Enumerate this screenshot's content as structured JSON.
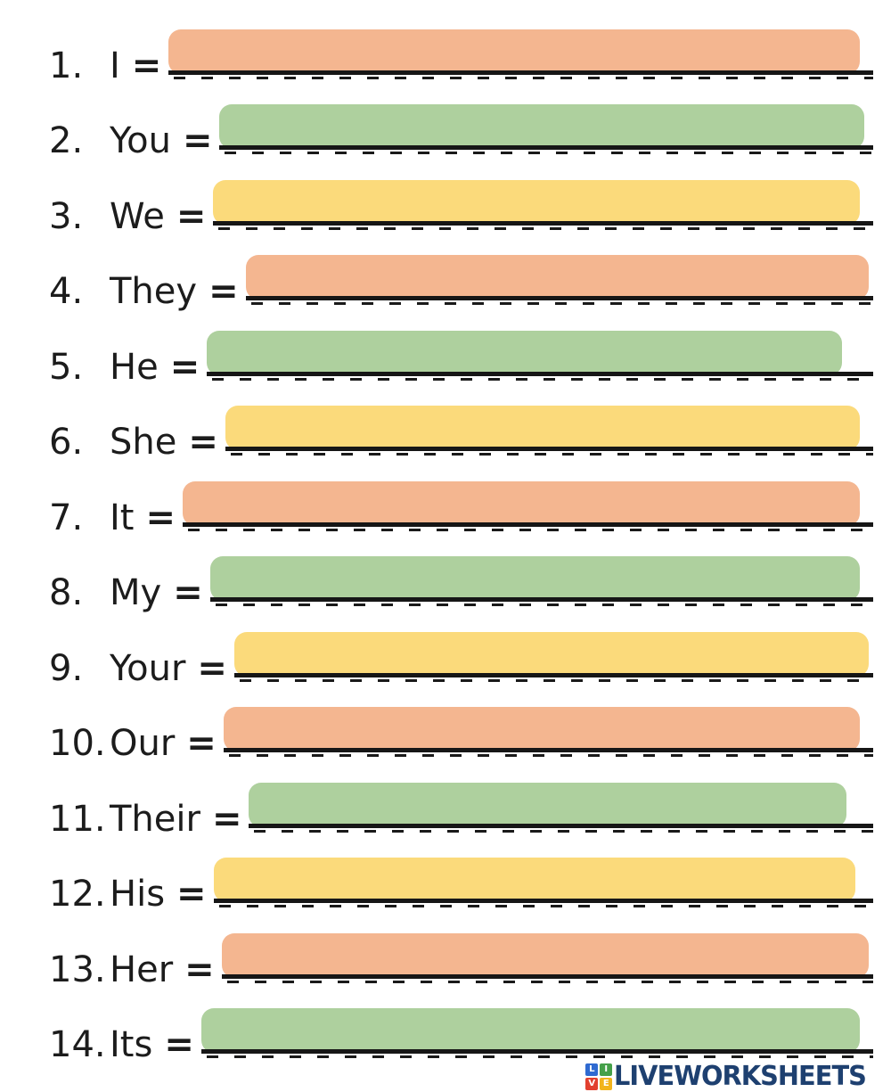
{
  "worksheet": {
    "colors": {
      "orange": "#f4b690",
      "green": "#aed09e",
      "yellow": "#fbda7b",
      "line": "#161616",
      "text": "#1c1c1c"
    },
    "items": [
      {
        "number": "1.",
        "label": "I",
        "equals": "=",
        "box_color": "orange"
      },
      {
        "number": "2.",
        "label": "You",
        "equals": "=",
        "box_color": "green"
      },
      {
        "number": "3.",
        "label": "We",
        "equals": "=",
        "box_color": "yellow"
      },
      {
        "number": "4.",
        "label": "They",
        "equals": "=",
        "box_color": "orange"
      },
      {
        "number": "5.",
        "label": "He",
        "equals": "=",
        "box_color": "green"
      },
      {
        "number": "6.",
        "label": "She",
        "equals": "=",
        "box_color": "yellow"
      },
      {
        "number": "7.",
        "label": "It",
        "equals": "=",
        "box_color": "orange"
      },
      {
        "number": "8.",
        "label": "My",
        "equals": "=",
        "box_color": "green"
      },
      {
        "number": "9.",
        "label": "Your",
        "equals": "=",
        "box_color": "yellow"
      },
      {
        "number": "10.",
        "label": "Our",
        "equals": "=",
        "box_color": "orange"
      },
      {
        "number": "11.",
        "label": "Their",
        "equals": "=",
        "box_color": "green"
      },
      {
        "number": "12.",
        "label": "His",
        "equals": "=",
        "box_color": "yellow"
      },
      {
        "number": "13.",
        "label": "Her",
        "equals": "=",
        "box_color": "orange"
      },
      {
        "number": "14.",
        "label": "Its",
        "equals": "=",
        "box_color": "green"
      }
    ]
  },
  "footer": {
    "logo_text": "LIVEWORKSHEETS",
    "icon_letters": [
      "L",
      "I",
      "V",
      "E"
    ],
    "icon_colors": [
      "#2f6ad1",
      "#45a049",
      "#e2402f",
      "#f2b41c"
    ],
    "logo_text_color": "#1e4070"
  }
}
